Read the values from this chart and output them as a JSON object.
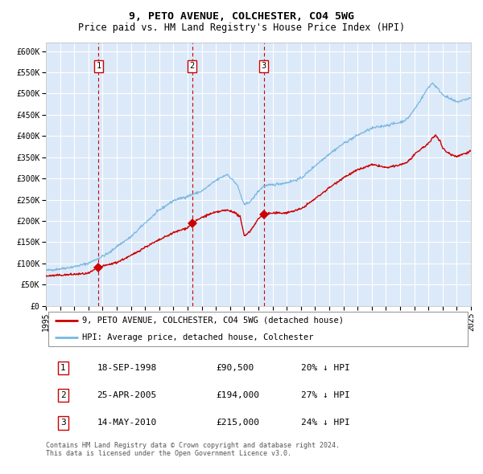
{
  "title": "9, PETO AVENUE, COLCHESTER, CO4 5WG",
  "subtitle": "Price paid vs. HM Land Registry's House Price Index (HPI)",
  "ylim": [
    0,
    620000
  ],
  "yticks": [
    0,
    50000,
    100000,
    150000,
    200000,
    250000,
    300000,
    350000,
    400000,
    450000,
    500000,
    550000,
    600000
  ],
  "ytick_labels": [
    "£0",
    "£50K",
    "£100K",
    "£150K",
    "£200K",
    "£250K",
    "£300K",
    "£350K",
    "£400K",
    "£450K",
    "£500K",
    "£550K",
    "£600K"
  ],
  "background_color": "#dce9f8",
  "hpi_line_color": "#7ab8e0",
  "price_line_color": "#cc0000",
  "marker_color": "#cc0000",
  "vline_color": "#cc0000",
  "grid_color": "#ffffff",
  "transactions": [
    {
      "date_num": 1998.72,
      "price": 90500,
      "label": "1"
    },
    {
      "date_num": 2005.32,
      "price": 194000,
      "label": "2"
    },
    {
      "date_num": 2010.37,
      "price": 215000,
      "label": "3"
    }
  ],
  "transaction_labels": [
    {
      "num": "1",
      "date": "18-SEP-1998",
      "price": "£90,500",
      "hpi": "20% ↓ HPI"
    },
    {
      "num": "2",
      "date": "25-APR-2005",
      "price": "£194,000",
      "hpi": "27% ↓ HPI"
    },
    {
      "num": "3",
      "date": "14-MAY-2010",
      "price": "£215,000",
      "hpi": "24% ↓ HPI"
    }
  ],
  "legend_entries": [
    {
      "label": "9, PETO AVENUE, COLCHESTER, CO4 5WG (detached house)",
      "color": "#cc0000"
    },
    {
      "label": "HPI: Average price, detached house, Colchester",
      "color": "#7ab8e0"
    }
  ],
  "footer": "Contains HM Land Registry data © Crown copyright and database right 2024.\nThis data is licensed under the Open Government Licence v3.0.",
  "title_fontsize": 9.5,
  "subtitle_fontsize": 8.5,
  "tick_fontsize": 7,
  "label_fontsize": 8,
  "legend_fontsize": 7.5,
  "footer_fontsize": 6
}
